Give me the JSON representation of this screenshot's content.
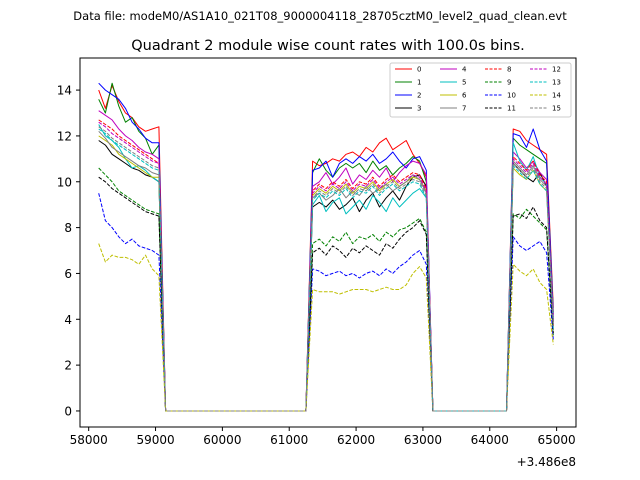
{
  "chart_data": {
    "type": "line",
    "suptitle": "Data file: modeM0/AS1A10_021T08_9000004118_28705cztM0_level2_quad_clean.evt",
    "title": "Quadrant 2 module wise count rates with 100.0s bins.",
    "xlabel": "",
    "ylabel": "",
    "x_offset_label": "+3.486e8",
    "x_offset": 348600000,
    "xlim": [
      57870,
      65290
    ],
    "ylim": [
      -0.7,
      15.4
    ],
    "x_ticks": [
      58000,
      59000,
      60000,
      61000,
      62000,
      63000,
      64000,
      65000
    ],
    "y_ticks": [
      0,
      2,
      4,
      6,
      8,
      10,
      12,
      14
    ],
    "legend_position": "top-right",
    "grid": false,
    "x": [
      58150,
      58250,
      58350,
      58450,
      58550,
      58650,
      58750,
      58850,
      58950,
      59050,
      59150,
      59250,
      59350,
      59450,
      59550,
      59650,
      59750,
      59850,
      59950,
      60050,
      60150,
      60250,
      60350,
      60450,
      60550,
      60650,
      60750,
      60850,
      60950,
      61050,
      61150,
      61250,
      61350,
      61450,
      61550,
      61650,
      61750,
      61850,
      61950,
      62050,
      62150,
      62250,
      62350,
      62450,
      62550,
      62650,
      62750,
      62850,
      62950,
      63050,
      63150,
      63250,
      63350,
      63450,
      63550,
      63650,
      63750,
      63850,
      63950,
      64050,
      64150,
      64250,
      64350,
      64450,
      64550,
      64650,
      64750,
      64850,
      64950
    ],
    "series": [
      {
        "name": "0",
        "color": "#ff0000",
        "dash": "solid",
        "values": [
          14.0,
          13.2,
          14.2,
          13.5,
          13.0,
          12.8,
          12.4,
          12.2,
          12.3,
          12.4,
          0,
          0,
          0,
          0,
          0,
          0,
          0,
          0,
          0,
          0,
          0,
          0,
          0,
          0,
          0,
          0,
          0,
          0,
          0,
          0,
          0,
          0,
          10.9,
          10.7,
          10.8,
          11.0,
          10.9,
          11.2,
          11.3,
          11.1,
          11.5,
          11.3,
          11.7,
          11.9,
          11.4,
          11.6,
          11.8,
          11.2,
          10.8,
          10.2,
          0,
          0,
          0,
          0,
          0,
          0,
          0,
          0,
          0,
          0,
          0,
          0,
          12.3,
          12.2,
          11.8,
          11.6,
          11.4,
          11.2,
          4.5
        ]
      },
      {
        "name": "1",
        "color": "#008000",
        "dash": "solid",
        "values": [
          13.6,
          13.0,
          14.3,
          13.3,
          12.6,
          12.8,
          12.2,
          11.9,
          11.2,
          11.6,
          0,
          0,
          0,
          0,
          0,
          0,
          0,
          0,
          0,
          0,
          0,
          0,
          0,
          0,
          0,
          0,
          0,
          0,
          0,
          0,
          0,
          0,
          10.4,
          11.0,
          10.5,
          10.2,
          10.6,
          10.8,
          10.6,
          10.8,
          10.4,
          10.9,
          10.5,
          10.7,
          10.3,
          10.6,
          10.8,
          11.1,
          10.9,
          10.0,
          0,
          0,
          0,
          0,
          0,
          0,
          0,
          0,
          0,
          0,
          0,
          0,
          11.9,
          11.6,
          11.4,
          11.2,
          11.0,
          10.8,
          4.3
        ]
      },
      {
        "name": "2",
        "color": "#0000ff",
        "dash": "solid",
        "values": [
          14.3,
          14.0,
          13.8,
          13.6,
          13.2,
          12.6,
          12.3,
          11.9,
          11.7,
          11.7,
          0,
          0,
          0,
          0,
          0,
          0,
          0,
          0,
          0,
          0,
          0,
          0,
          0,
          0,
          0,
          0,
          0,
          0,
          0,
          0,
          0,
          0,
          10.5,
          10.6,
          10.9,
          10.2,
          10.8,
          11.0,
          10.8,
          11.1,
          10.9,
          11.2,
          10.8,
          11.0,
          11.3,
          10.9,
          10.6,
          11.0,
          11.1,
          10.5,
          0,
          0,
          0,
          0,
          0,
          0,
          0,
          0,
          0,
          0,
          0,
          0,
          12.1,
          12.0,
          11.5,
          12.3,
          11.4,
          10.9,
          4.2
        ]
      },
      {
        "name": "3",
        "color": "#000000",
        "dash": "solid",
        "values": [
          11.8,
          11.6,
          11.2,
          11.0,
          10.8,
          10.6,
          10.5,
          10.3,
          10.2,
          10.0,
          0,
          0,
          0,
          0,
          0,
          0,
          0,
          0,
          0,
          0,
          0,
          0,
          0,
          0,
          0,
          0,
          0,
          0,
          0,
          0,
          0,
          0,
          8.9,
          9.1,
          8.9,
          9.2,
          8.8,
          9.0,
          9.3,
          8.7,
          9.2,
          9.5,
          8.9,
          9.3,
          9.6,
          9.2,
          9.8,
          10.2,
          10.3,
          9.8,
          0,
          0,
          0,
          0,
          0,
          0,
          0,
          0,
          0,
          0,
          0,
          0,
          10.8,
          10.5,
          10.2,
          10.0,
          10.4,
          9.8,
          3.9
        ]
      },
      {
        "name": "4",
        "color": "#bf00bf",
        "dash": "solid",
        "values": [
          13.1,
          12.9,
          12.7,
          12.3,
          12.0,
          11.8,
          11.5,
          11.3,
          11.2,
          11.0,
          0,
          0,
          0,
          0,
          0,
          0,
          0,
          0,
          0,
          0,
          0,
          0,
          0,
          0,
          0,
          0,
          0,
          0,
          0,
          0,
          0,
          0,
          9.8,
          10.0,
          10.4,
          9.9,
          10.2,
          10.6,
          9.9,
          10.3,
          10.1,
          10.5,
          10.2,
          10.6,
          10.0,
          10.4,
          10.7,
          10.9,
          10.8,
          10.3,
          0,
          0,
          0,
          0,
          0,
          0,
          0,
          0,
          0,
          0,
          0,
          0,
          11.3,
          11.0,
          10.6,
          10.9,
          10.4,
          10.1,
          4.1
        ]
      },
      {
        "name": "5",
        "color": "#00bfbf",
        "dash": "solid",
        "values": [
          12.5,
          12.0,
          11.8,
          11.5,
          11.0,
          10.6,
          10.7,
          10.5,
          10.2,
          10.0,
          0,
          0,
          0,
          0,
          0,
          0,
          0,
          0,
          0,
          0,
          0,
          0,
          0,
          0,
          0,
          0,
          0,
          0,
          0,
          0,
          0,
          0,
          9.0,
          9.4,
          8.7,
          9.1,
          9.3,
          8.6,
          8.9,
          9.2,
          8.8,
          9.4,
          9.1,
          8.7,
          9.3,
          8.9,
          9.2,
          9.5,
          9.7,
          9.3,
          0,
          0,
          0,
          0,
          0,
          0,
          0,
          0,
          0,
          0,
          0,
          0,
          11.7,
          10.9,
          10.5,
          11.1,
          10.2,
          9.9,
          4.0
        ]
      },
      {
        "name": "6",
        "color": "#bfbf00",
        "dash": "solid",
        "values": [
          12.0,
          11.8,
          11.6,
          11.2,
          11.0,
          10.8,
          10.6,
          10.4,
          10.2,
          10.2,
          0,
          0,
          0,
          0,
          0,
          0,
          0,
          0,
          0,
          0,
          0,
          0,
          0,
          0,
          0,
          0,
          0,
          0,
          0,
          0,
          0,
          0,
          9.4,
          9.7,
          9.5,
          9.8,
          9.6,
          9.9,
          9.5,
          9.8,
          9.7,
          10.0,
          9.6,
          9.9,
          10.1,
          9.8,
          10.0,
          10.2,
          10.1,
          9.6,
          0,
          0,
          0,
          0,
          0,
          0,
          0,
          0,
          0,
          0,
          0,
          0,
          10.6,
          10.3,
          10.1,
          10.5,
          9.9,
          9.6,
          3.8
        ]
      },
      {
        "name": "7",
        "color": "#808080",
        "dash": "solid",
        "values": [
          12.2,
          11.9,
          11.5,
          11.3,
          11.1,
          10.9,
          10.7,
          10.6,
          10.4,
          10.3,
          0,
          0,
          0,
          0,
          0,
          0,
          0,
          0,
          0,
          0,
          0,
          0,
          0,
          0,
          0,
          0,
          0,
          0,
          0,
          0,
          0,
          0,
          9.3,
          9.5,
          9.2,
          9.4,
          9.7,
          9.3,
          9.6,
          9.4,
          9.8,
          9.5,
          9.7,
          9.9,
          9.6,
          9.8,
          10.0,
          10.3,
          10.1,
          9.5,
          0,
          0,
          0,
          0,
          0,
          0,
          0,
          0,
          0,
          0,
          0,
          0,
          10.9,
          10.6,
          10.3,
          10.7,
          10.1,
          9.8,
          3.9
        ]
      },
      {
        "name": "8",
        "color": "#ff0000",
        "dash": "dashed",
        "values": [
          12.7,
          12.5,
          12.3,
          12.0,
          11.8,
          11.6,
          11.4,
          11.2,
          11.0,
          10.8,
          0,
          0,
          0,
          0,
          0,
          0,
          0,
          0,
          0,
          0,
          0,
          0,
          0,
          0,
          0,
          0,
          0,
          0,
          0,
          0,
          0,
          0,
          9.6,
          9.9,
          9.7,
          10.0,
          9.8,
          10.1,
          9.7,
          10.0,
          9.9,
          10.2,
          9.8,
          10.1,
          10.3,
          10.0,
          10.2,
          10.4,
          10.3,
          9.7,
          0,
          0,
          0,
          0,
          0,
          0,
          0,
          0,
          0,
          0,
          0,
          0,
          11.1,
          10.8,
          10.5,
          10.9,
          10.3,
          10.0,
          3.7
        ]
      },
      {
        "name": "9",
        "color": "#008000",
        "dash": "dashed",
        "values": [
          10.6,
          10.3,
          10.0,
          9.6,
          9.4,
          9.2,
          9.0,
          8.8,
          8.7,
          8.6,
          0,
          0,
          0,
          0,
          0,
          0,
          0,
          0,
          0,
          0,
          0,
          0,
          0,
          0,
          0,
          0,
          0,
          0,
          0,
          0,
          0,
          0,
          7.3,
          7.5,
          7.2,
          7.6,
          7.4,
          7.8,
          7.3,
          7.6,
          7.5,
          7.7,
          7.4,
          7.8,
          7.6,
          7.9,
          8.0,
          8.2,
          8.4,
          7.8,
          0,
          0,
          0,
          0,
          0,
          0,
          0,
          0,
          0,
          0,
          0,
          0,
          8.6,
          8.4,
          8.8,
          8.5,
          8.2,
          7.9,
          3.3
        ]
      },
      {
        "name": "10",
        "color": "#0000ff",
        "dash": "dashed",
        "values": [
          9.5,
          8.3,
          8.0,
          7.6,
          7.3,
          7.5,
          7.2,
          7.1,
          7.0,
          6.8,
          0,
          0,
          0,
          0,
          0,
          0,
          0,
          0,
          0,
          0,
          0,
          0,
          0,
          0,
          0,
          0,
          0,
          0,
          0,
          0,
          0,
          0,
          6.2,
          6.1,
          5.9,
          6.0,
          6.1,
          5.9,
          6.0,
          5.8,
          6.0,
          6.1,
          5.9,
          6.2,
          6.0,
          6.3,
          6.5,
          6.8,
          7.0,
          6.4,
          0,
          0,
          0,
          0,
          0,
          0,
          0,
          0,
          0,
          0,
          0,
          0,
          7.6,
          7.2,
          7.0,
          7.2,
          7.4,
          6.9,
          3.1
        ]
      },
      {
        "name": "11",
        "color": "#000000",
        "dash": "dashed",
        "values": [
          10.2,
          10.0,
          9.7,
          9.5,
          9.3,
          9.1,
          8.9,
          8.7,
          8.6,
          8.5,
          0,
          0,
          0,
          0,
          0,
          0,
          0,
          0,
          0,
          0,
          0,
          0,
          0,
          0,
          0,
          0,
          0,
          0,
          0,
          0,
          0,
          0,
          6.9,
          7.1,
          6.8,
          7.2,
          7.0,
          6.7,
          7.1,
          6.9,
          7.2,
          7.0,
          6.8,
          7.3,
          7.1,
          7.5,
          7.8,
          8.0,
          8.3,
          7.7,
          0,
          0,
          0,
          0,
          0,
          0,
          0,
          0,
          0,
          0,
          0,
          0,
          8.5,
          8.6,
          8.4,
          8.9,
          8.3,
          8.0,
          3.4
        ]
      },
      {
        "name": "12",
        "color": "#bf00bf",
        "dash": "dashed",
        "values": [
          12.6,
          12.4,
          12.1,
          11.9,
          11.7,
          11.5,
          11.3,
          11.1,
          10.9,
          10.8,
          0,
          0,
          0,
          0,
          0,
          0,
          0,
          0,
          0,
          0,
          0,
          0,
          0,
          0,
          0,
          0,
          0,
          0,
          0,
          0,
          0,
          0,
          9.5,
          9.8,
          9.6,
          9.9,
          9.7,
          10.0,
          9.6,
          9.9,
          9.8,
          10.1,
          9.7,
          10.0,
          10.2,
          9.9,
          10.1,
          10.3,
          10.2,
          9.6,
          0,
          0,
          0,
          0,
          0,
          0,
          0,
          0,
          0,
          0,
          0,
          0,
          11.0,
          10.7,
          10.4,
          10.8,
          10.2,
          9.9,
          3.8
        ]
      },
      {
        "name": "13",
        "color": "#00bfbf",
        "dash": "dashed",
        "values": [
          12.3,
          12.1,
          11.8,
          11.6,
          11.4,
          11.2,
          11.0,
          10.8,
          10.6,
          10.5,
          0,
          0,
          0,
          0,
          0,
          0,
          0,
          0,
          0,
          0,
          0,
          0,
          0,
          0,
          0,
          0,
          0,
          0,
          0,
          0,
          0,
          0,
          9.2,
          9.5,
          9.3,
          9.6,
          9.4,
          9.7,
          9.3,
          9.6,
          9.5,
          9.8,
          9.4,
          9.7,
          9.9,
          9.6,
          9.8,
          10.0,
          9.9,
          9.3,
          0,
          0,
          0,
          0,
          0,
          0,
          0,
          0,
          0,
          0,
          0,
          0,
          10.7,
          10.4,
          10.1,
          10.5,
          9.9,
          9.6,
          3.6
        ]
      },
      {
        "name": "14",
        "color": "#bfbf00",
        "dash": "dashed",
        "values": [
          7.3,
          6.5,
          6.8,
          6.7,
          6.7,
          6.6,
          6.4,
          6.8,
          6.2,
          5.9,
          0,
          0,
          0,
          0,
          0,
          0,
          0,
          0,
          0,
          0,
          0,
          0,
          0,
          0,
          0,
          0,
          0,
          0,
          0,
          0,
          0,
          0,
          5.3,
          5.2,
          5.2,
          5.2,
          5.1,
          5.2,
          5.3,
          5.3,
          5.3,
          5.2,
          5.3,
          5.4,
          5.3,
          5.3,
          5.5,
          6.0,
          6.3,
          5.8,
          0,
          0,
          0,
          0,
          0,
          0,
          0,
          0,
          0,
          0,
          0,
          0,
          6.4,
          6.1,
          5.9,
          6.2,
          5.6,
          5.3,
          2.9
        ]
      },
      {
        "name": "15",
        "color": "#808080",
        "dash": "dashed",
        "values": [
          12.4,
          12.2,
          11.9,
          11.7,
          11.5,
          11.3,
          11.1,
          10.9,
          10.7,
          10.6,
          0,
          0,
          0,
          0,
          0,
          0,
          0,
          0,
          0,
          0,
          0,
          0,
          0,
          0,
          0,
          0,
          0,
          0,
          0,
          0,
          0,
          0,
          9.3,
          9.6,
          9.4,
          9.7,
          9.5,
          9.8,
          9.4,
          9.7,
          9.6,
          9.9,
          9.5,
          9.8,
          10.0,
          9.7,
          9.9,
          10.1,
          10.0,
          9.4,
          0,
          0,
          0,
          0,
          0,
          0,
          0,
          0,
          0,
          0,
          0,
          0,
          10.8,
          10.5,
          10.2,
          10.6,
          10.0,
          9.7,
          3.7
        ]
      }
    ]
  }
}
